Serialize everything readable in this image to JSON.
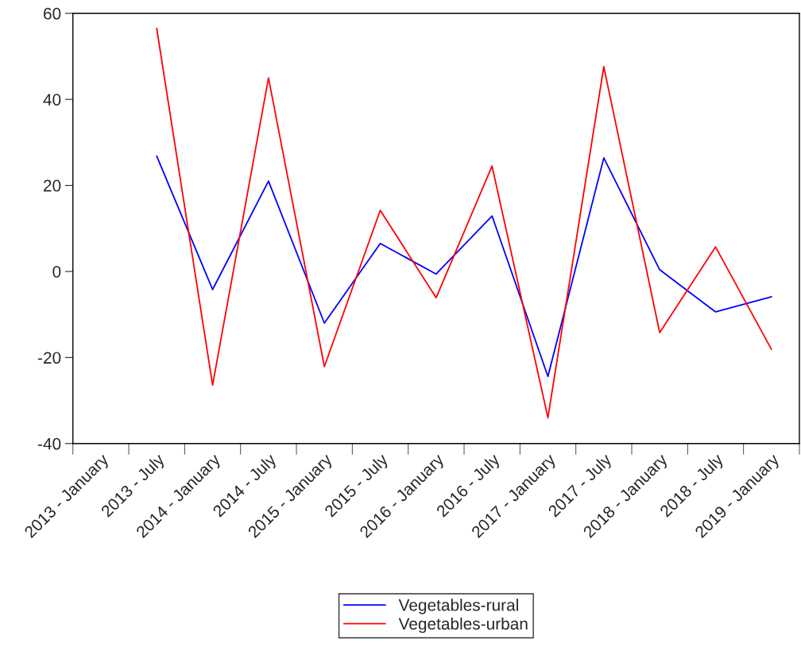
{
  "chart_data": {
    "type": "line",
    "categories": [
      "2013 - January",
      "2013 - July",
      "2014 - January",
      "2014 - July",
      "2015 - January",
      "2015 - July",
      "2016 - January",
      "2016 - July",
      "2017 - January",
      "2017 - July",
      "2018 - January",
      "2018 - July",
      "2019 - January"
    ],
    "series": [
      {
        "name": "Vegetables-rural",
        "color": "#0000ff",
        "values": [
          null,
          26.8,
          -4.2,
          21.0,
          -12.0,
          6.5,
          -0.6,
          12.9,
          -24.4,
          26.4,
          0.4,
          -9.4,
          -5.9
        ]
      },
      {
        "name": "Vegetables-urban",
        "color": "#ff0000",
        "values": [
          null,
          56.5,
          -26.4,
          45.0,
          -22.1,
          14.2,
          -6.1,
          24.5,
          -34.0,
          47.6,
          -14.2,
          5.7,
          -18.1
        ]
      }
    ],
    "ylim": [
      -40,
      60
    ],
    "yticks": [
      -40,
      -20,
      0,
      20,
      40,
      60
    ],
    "grid": false,
    "legend": "bottom",
    "marker": "none",
    "line_style": "solid"
  }
}
